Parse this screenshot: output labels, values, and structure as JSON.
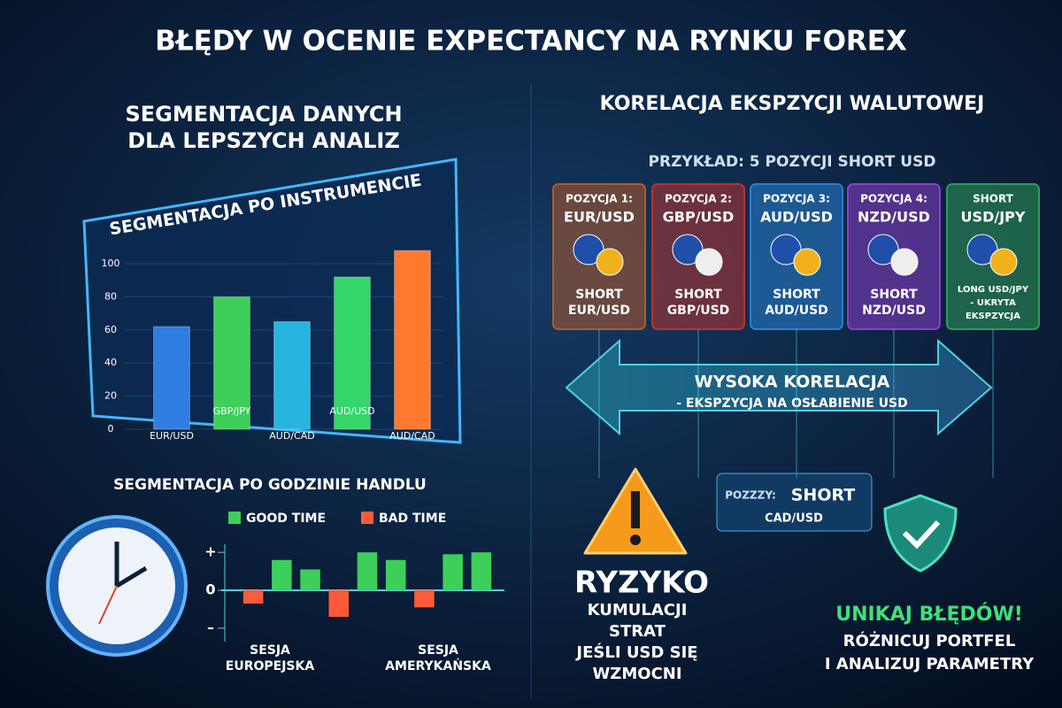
{
  "title": "BŁĘDY W OCENIE EXPECTANCY NA RYNKU FOREX",
  "left": {
    "heading": [
      "SEGMENTACJA DANYCH",
      "DLA LEPSZYCH ANALIZ"
    ],
    "instrument_chart": {
      "type": "bar",
      "title": "SEGMENTACJA PO INSTRUMENCIE",
      "categories": [
        "EUR/USD",
        "GBP/JPY",
        "AUD/CAD",
        "AUD/USD",
        "AUD/CAD"
      ],
      "values": [
        62,
        80,
        65,
        92,
        108
      ],
      "colors": [
        "#2f7de0",
        "#3ecf5a",
        "#27b5e0",
        "#35d66a",
        "#ff7a2e"
      ],
      "ylim": [
        0,
        115
      ],
      "yticks": [
        0,
        20,
        40,
        60,
        80,
        100
      ]
    },
    "time_heading": "SEGMENTACJA PO GODZINIE HANDLU",
    "time_chart": {
      "type": "bar",
      "legend": [
        {
          "name": "GOOD TIME",
          "color": "#3ecf5a"
        },
        {
          "name": "BAD TIME",
          "color": "#ff5a3a"
        }
      ],
      "values": [
        -0.35,
        0.8,
        0.55,
        -0.7,
        1.0,
        0.8,
        -0.45,
        0.95,
        1.0
      ],
      "ylim": [
        -1.05,
        1.05
      ],
      "yticks": [
        {
          "value": 1,
          "label": "+"
        },
        {
          "value": 0,
          "label": "0"
        },
        {
          "value": -1,
          "label": "–"
        }
      ],
      "sessions": [
        [
          "SESJA",
          "EUROPEJSKA"
        ],
        [
          "SESJA",
          "AMERYKAŃSKA"
        ]
      ]
    }
  },
  "right": {
    "heading": "KORELACJA EKSPZYCJI WALUTOWEJ",
    "example": "PRZYKŁAD: 5 POZYCJI SHORT USD",
    "cards": [
      {
        "top": "POZYCJA 1:",
        "pair": "EUR/USD",
        "bottom": [
          "SHORT",
          "EUR/USD"
        ],
        "color": "#b05a2a"
      },
      {
        "top": "POZYCJA 2:",
        "pair": "GBP/USD",
        "bottom": [
          "SHORT",
          "GBP/USD"
        ],
        "color": "#b8332e"
      },
      {
        "top": "POZYCJA 3:",
        "pair": "AUD/USD",
        "bottom": [
          "SHORT",
          "AUD/USD"
        ],
        "color": "#2a7fd0"
      },
      {
        "top": "POZYCJA 4:",
        "pair": "NZD/USD",
        "bottom": [
          "SHORT",
          "NZD/USD"
        ],
        "color": "#8a3ec8"
      },
      {
        "top": "SHORT",
        "pair": "USD/JPY",
        "bottom": [
          "LONG USD/JPY",
          "- UKRYTA",
          "EKSPZYCJA"
        ],
        "color": "#2f9a5a"
      }
    ],
    "arrow": [
      "WYSOKA KORELACJA",
      "- EKSPZYCJA NA OSŁABIENIE USD"
    ],
    "box": {
      "prefix": "POZZZY:",
      "main": "SHORT",
      "pair": "CAD/USD"
    },
    "risk": {
      "title": "RYZYKO",
      "lines": [
        "KUMULACJI",
        "STRAT",
        "JEŚLI USD SIĘ",
        "WZMOCNI"
      ]
    },
    "avoid": {
      "title": "UNIKAJ BŁĘDÓW!",
      "lines": [
        "RÓŻNICUJ PORTFEL",
        "I ANALIZUJ PARAMETRY"
      ]
    }
  }
}
